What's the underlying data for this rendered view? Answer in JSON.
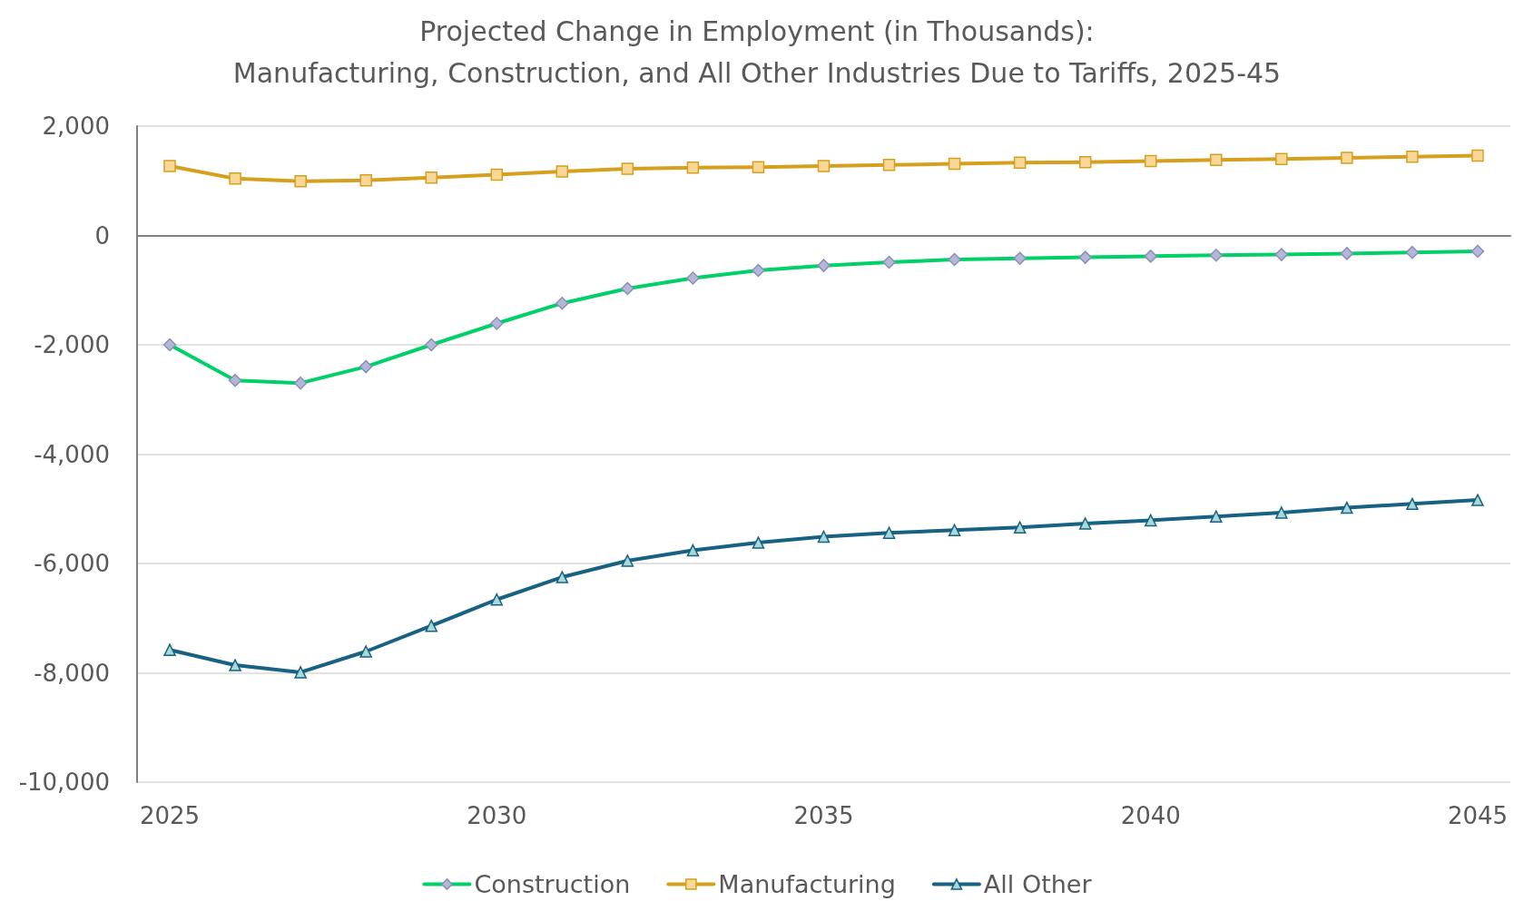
{
  "chart_data": {
    "type": "line",
    "title": "Projected Change in Employment (in Thousands):\nManufacturing, Construction, and All Other Industries Due to Tariffs, 2025-45",
    "x": [
      2025,
      2026,
      2027,
      2028,
      2029,
      2030,
      2031,
      2032,
      2033,
      2034,
      2035,
      2036,
      2037,
      2038,
      2039,
      2040,
      2041,
      2042,
      2043,
      2044,
      2045
    ],
    "series": [
      {
        "name": "Construction",
        "color": "#00d068",
        "marker": "diamond",
        "values": [
          -2000,
          -2650,
          -2700,
          -2400,
          -2000,
          -1610,
          -1240,
          -970,
          -780,
          -640,
          -550,
          -490,
          -440,
          -420,
          -400,
          -380,
          -360,
          -350,
          -330,
          -310,
          -290
        ]
      },
      {
        "name": "Manufacturing",
        "color": "#d69f1e",
        "marker": "square",
        "values": [
          1270,
          1040,
          990,
          1010,
          1060,
          1110,
          1170,
          1220,
          1240,
          1250,
          1270,
          1290,
          1310,
          1330,
          1340,
          1360,
          1380,
          1400,
          1420,
          1440,
          1460
        ]
      },
      {
        "name": "All Other",
        "color": "#176282",
        "marker": "triangle",
        "values": [
          -7580,
          -7860,
          -7990,
          -7610,
          -7140,
          -6660,
          -6250,
          -5950,
          -5760,
          -5620,
          -5510,
          -5440,
          -5390,
          -5340,
          -5270,
          -5210,
          -5140,
          -5070,
          -4980,
          -4910,
          -4840
        ]
      }
    ],
    "xlim": [
      2024.5,
      2045.5
    ],
    "xticks": [
      2025,
      2030,
      2035,
      2040,
      2045
    ],
    "ylim": [
      -10000,
      2000
    ],
    "yticks": [
      {
        "value": -10000,
        "label": "-10,000"
      },
      {
        "value": -8000,
        "label": "-8,000"
      },
      {
        "value": -6000,
        "label": "-6,000"
      },
      {
        "value": -4000,
        "label": "-4,000"
      },
      {
        "value": -2000,
        "label": "-2,000"
      },
      0,
      {
        "value": 2000,
        "label": "2,000"
      }
    ],
    "grid": "y",
    "legend": "bottom",
    "line_style": "solid"
  }
}
